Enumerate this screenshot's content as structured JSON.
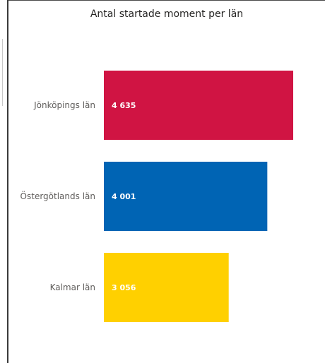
{
  "chart_data": {
    "type": "bar",
    "orientation": "horizontal",
    "title": "Antal startade moment per län",
    "categories": [
      "Jönköpings län",
      "Östergötlands län",
      "Kalmar län"
    ],
    "values": [
      4635,
      4001,
      3056
    ],
    "value_labels": [
      "4 635",
      "4 001",
      "3 056"
    ],
    "colors": [
      "#d01443",
      "#0064b4",
      "#ffd000"
    ],
    "xlim": [
      0,
      5000
    ],
    "grid": false,
    "legend": "none"
  }
}
